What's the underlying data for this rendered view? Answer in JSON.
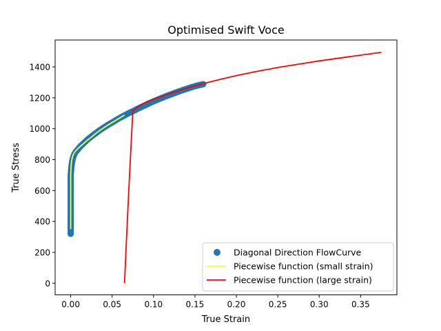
{
  "chart_data": {
    "type": "line",
    "title": "Optimised Swift Voce",
    "xlabel": "True Strain",
    "ylabel": "True Stress",
    "xlim": [
      -0.0188,
      0.3938
    ],
    "ylim": [
      -75,
      1574
    ],
    "x_ticks": [
      0.0,
      0.05,
      0.1,
      0.15,
      0.2,
      0.25,
      0.3,
      0.35
    ],
    "x_tick_labels": [
      "0.00",
      "0.05",
      "0.10",
      "0.15",
      "0.20",
      "0.25",
      "0.30",
      "0.35"
    ],
    "y_ticks": [
      0,
      200,
      400,
      600,
      800,
      1000,
      1200,
      1400
    ],
    "y_tick_labels": [
      "0",
      "200",
      "400",
      "600",
      "800",
      "1000",
      "1200",
      "1400"
    ],
    "grid": false,
    "legend_position": "lower-right",
    "series": [
      {
        "name": "Diagonal Direction FlowCurve",
        "kind": "scatter",
        "color": "#1f77b4",
        "x": [
          0.0,
          0.0,
          0.0,
          0.0,
          0.0,
          0.0,
          0.0,
          0.0,
          0.0,
          0.0005,
          0.001,
          0.0015,
          0.002,
          0.003,
          0.004,
          0.005,
          0.006,
          0.008,
          0.01,
          0.012,
          0.015,
          0.018,
          0.02,
          0.025,
          0.03,
          0.035,
          0.04,
          0.045,
          0.05,
          0.055,
          0.06,
          0.065,
          0.07,
          0.075,
          0.08,
          0.085,
          0.09,
          0.095,
          0.1,
          0.105,
          0.11,
          0.115,
          0.12,
          0.125,
          0.13,
          0.135,
          0.14,
          0.145,
          0.15,
          0.155,
          0.16
        ],
        "y": [
          320,
          360,
          400,
          450,
          500,
          550,
          600,
          650,
          700,
          730,
          760,
          780,
          795,
          815,
          830,
          840,
          850,
          862,
          875,
          888,
          903,
          918,
          928,
          950,
          970,
          990,
          1008,
          1025,
          1040,
          1057,
          1072,
          1086,
          1100,
          1113,
          1127,
          1140,
          1152,
          1165,
          1177,
          1188,
          1199,
          1210,
          1220,
          1230,
          1240,
          1249,
          1258,
          1267,
          1275,
          1282,
          1288
        ]
      },
      {
        "name": "Piecewise function (small strain)",
        "kind": "line",
        "color": "#ffff33",
        "x": [
          0.0,
          0.0,
          0.0,
          0.0005,
          0.001,
          0.002,
          0.003,
          0.005,
          0.008,
          0.012,
          0.016,
          0.02,
          0.025,
          0.03,
          0.035,
          0.04,
          0.045,
          0.05,
          0.055,
          0.06,
          0.065
        ],
        "y": [
          350,
          550,
          700,
          760,
          790,
          815,
          832,
          850,
          868,
          888,
          906,
          925,
          946,
          968,
          988,
          1006,
          1024,
          1040,
          1056,
          1072,
          1088
        ]
      },
      {
        "name": "Piecewise function (large strain)",
        "kind": "line",
        "color": "#ff0000",
        "x": [
          0.065,
          0.067,
          0.069,
          0.071,
          0.073,
          0.075,
          0.08,
          0.09,
          0.1,
          0.12,
          0.14,
          0.16,
          0.18,
          0.2,
          0.22,
          0.25,
          0.28,
          0.3,
          0.33,
          0.35,
          0.375
        ],
        "y": [
          0,
          240,
          470,
          700,
          910,
          1115,
          1137,
          1170,
          1190,
          1228,
          1262,
          1292,
          1319,
          1344,
          1366,
          1396,
          1422,
          1439,
          1461,
          1476,
          1494
        ]
      }
    ]
  }
}
